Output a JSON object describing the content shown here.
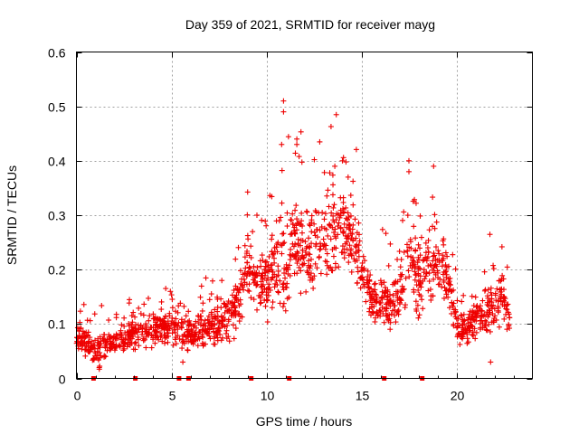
{
  "chart_data": {
    "type": "scatter",
    "title": "Day 359 of 2021, SRMTID for receiver mayg",
    "xlabel": "GPS time / hours",
    "ylabel": "SRMTID / TECUs",
    "xlim": [
      0,
      24
    ],
    "ylim": [
      0,
      0.6
    ],
    "x_ticks": [
      0,
      5,
      10,
      15,
      20
    ],
    "x_tick_labels": [
      "0",
      "5",
      "10",
      "15",
      "20"
    ],
    "y_ticks": [
      0,
      0.1,
      0.2,
      0.3,
      0.4,
      0.5,
      0.6
    ],
    "y_tick_labels": [
      "0",
      "0.1",
      "0.2",
      "0.3",
      "0.4",
      "0.5",
      "0.6"
    ],
    "grid": true,
    "marker": "plus",
    "color": "#ee0000",
    "series": [
      {
        "name": "SRMTID",
        "envelope": {
          "x": [
            0,
            1,
            2,
            3,
            4,
            5,
            6,
            7,
            8,
            8.5,
            9,
            9.5,
            10,
            10.5,
            11,
            11.5,
            12,
            12.5,
            13,
            13.5,
            14,
            14.5,
            15,
            15.5,
            16,
            16.5,
            17,
            17.5,
            18,
            18.5,
            19,
            19.5,
            20,
            20.5,
            21,
            21.5,
            22,
            22.5,
            22.8
          ],
          "center": [
            0.08,
            0.05,
            0.07,
            0.08,
            0.09,
            0.1,
            0.08,
            0.09,
            0.11,
            0.14,
            0.2,
            0.18,
            0.17,
            0.22,
            0.2,
            0.26,
            0.22,
            0.24,
            0.25,
            0.27,
            0.28,
            0.26,
            0.2,
            0.15,
            0.14,
            0.14,
            0.15,
            0.22,
            0.18,
            0.2,
            0.22,
            0.19,
            0.1,
            0.09,
            0.11,
            0.12,
            0.13,
            0.15,
            0.1
          ],
          "spread": [
            0.025,
            0.025,
            0.025,
            0.025,
            0.03,
            0.03,
            0.03,
            0.03,
            0.04,
            0.05,
            0.06,
            0.05,
            0.06,
            0.08,
            0.09,
            0.08,
            0.07,
            0.07,
            0.07,
            0.08,
            0.08,
            0.07,
            0.06,
            0.04,
            0.04,
            0.04,
            0.05,
            0.07,
            0.06,
            0.06,
            0.07,
            0.05,
            0.03,
            0.03,
            0.03,
            0.04,
            0.04,
            0.04,
            0.03
          ]
        },
        "peaks": [
          {
            "x": 10.9,
            "y": 0.51
          },
          {
            "x": 10.9,
            "y": 0.49
          },
          {
            "x": 11.6,
            "y": 0.44
          },
          {
            "x": 11.6,
            "y": 0.43
          },
          {
            "x": 10.8,
            "y": 0.43
          },
          {
            "x": 14.0,
            "y": 0.4
          },
          {
            "x": 17.5,
            "y": 0.4
          },
          {
            "x": 18.8,
            "y": 0.39
          },
          {
            "x": 17.5,
            "y": 0.38
          },
          {
            "x": 14.3,
            "y": 0.37
          },
          {
            "x": 13.6,
            "y": 0.39
          },
          {
            "x": 9.5,
            "y": 0.3
          },
          {
            "x": 1.2,
            "y": 0.02
          },
          {
            "x": 5.6,
            "y": 0.03
          },
          {
            "x": 21.8,
            "y": 0.03
          }
        ]
      }
    ],
    "data_gap_markers_x": [
      0.9,
      3.1,
      5.4,
      5.9,
      9.2,
      11.2,
      16.2,
      18.2
    ]
  }
}
